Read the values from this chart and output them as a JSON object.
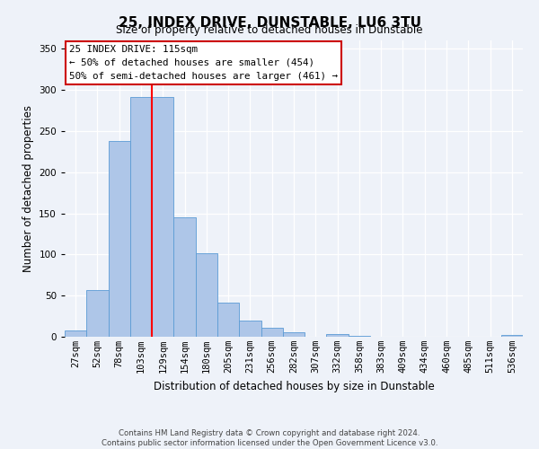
{
  "title": "25, INDEX DRIVE, DUNSTABLE, LU6 3TU",
  "subtitle": "Size of property relative to detached houses in Dunstable",
  "xlabel": "Distribution of detached houses by size in Dunstable",
  "ylabel": "Number of detached properties",
  "bar_labels": [
    "27sqm",
    "52sqm",
    "78sqm",
    "103sqm",
    "129sqm",
    "154sqm",
    "180sqm",
    "205sqm",
    "231sqm",
    "256sqm",
    "282sqm",
    "307sqm",
    "332sqm",
    "358sqm",
    "383sqm",
    "409sqm",
    "434sqm",
    "460sqm",
    "485sqm",
    "511sqm",
    "536sqm"
  ],
  "bar_values": [
    8,
    57,
    238,
    291,
    291,
    145,
    101,
    41,
    20,
    11,
    5,
    0,
    3,
    1,
    0,
    0,
    0,
    0,
    0,
    0,
    2
  ],
  "bar_color": "#aec6e8",
  "bar_edge_color": "#5b9bd5",
  "vline_color": "red",
  "vline_x_index": 3.5,
  "ylim": [
    0,
    360
  ],
  "yticks": [
    0,
    50,
    100,
    150,
    200,
    250,
    300,
    350
  ],
  "annotation_title": "25 INDEX DRIVE: 115sqm",
  "annotation_line1": "← 50% of detached houses are smaller (454)",
  "annotation_line2": "50% of semi-detached houses are larger (461) →",
  "annotation_box_color": "#ffffff",
  "annotation_box_edge": "#cc0000",
  "footer_line1": "Contains HM Land Registry data © Crown copyright and database right 2024.",
  "footer_line2": "Contains public sector information licensed under the Open Government Licence v3.0.",
  "bg_color": "#eef2f9",
  "plot_bg_color": "#eef2f9",
  "grid_color": "#ffffff",
  "title_fontsize": 11,
  "subtitle_fontsize": 8.5,
  "ylabel_fontsize": 8.5,
  "xlabel_fontsize": 8.5,
  "tick_fontsize": 7.5,
  "ann_fontsize": 7.8,
  "footer_fontsize": 6.2
}
